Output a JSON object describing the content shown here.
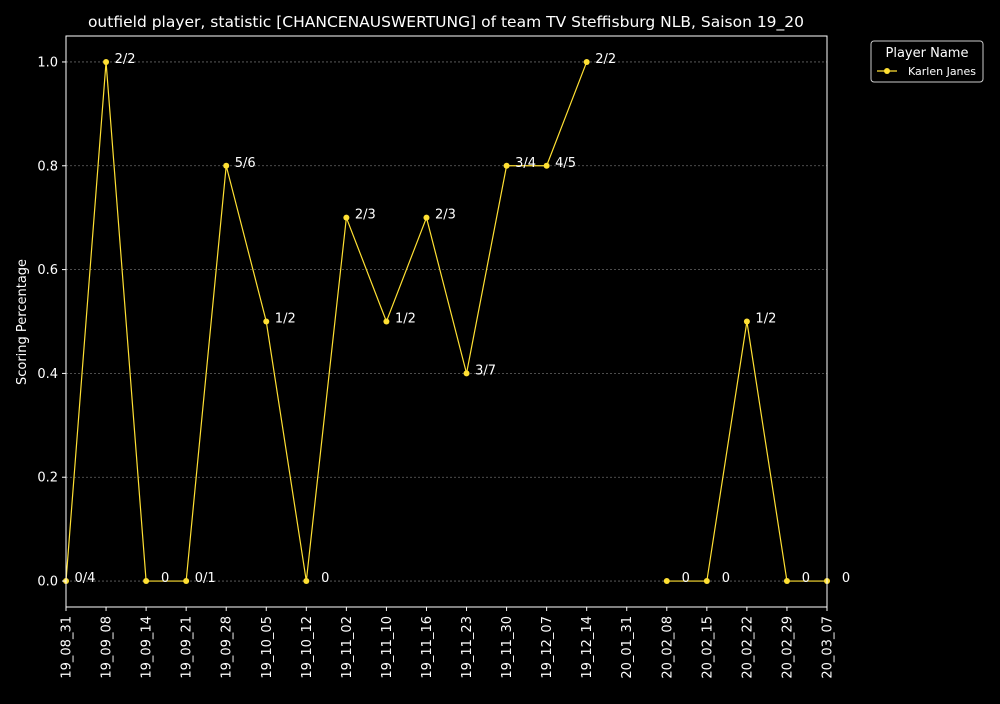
{
  "chart_data": {
    "type": "line",
    "title": "outfield player, statistic [CHANCENAUSWERTUNG] of team TV Steffisburg NLB, Saison 19_20",
    "xlabel": "",
    "ylabel": "Scoring Percentage",
    "ylim": [
      -0.05,
      1.05
    ],
    "yticks": [
      0.0,
      0.2,
      0.4,
      0.6,
      0.8,
      1.0
    ],
    "ytick_labels": [
      "0.0",
      "0.2",
      "0.4",
      "0.6",
      "0.8",
      "1.0"
    ],
    "grid": true,
    "legend": {
      "title": "Player Name",
      "placement": "outside-top-right"
    },
    "categories": [
      "19_08_31",
      "19_09_08",
      "19_09_14",
      "19_09_21",
      "19_09_28",
      "19_10_05",
      "19_10_12",
      "19_11_02",
      "19_11_10",
      "19_11_16",
      "19_11_23",
      "19_11_30",
      "19_12_07",
      "19_12_14",
      "20_01_31",
      "20_02_08",
      "20_02_15",
      "20_02_22",
      "20_02_29",
      "20_03_07"
    ],
    "series": [
      {
        "name": "Karlen Janes",
        "color": "#ffe033",
        "values": [
          0.0,
          1.0,
          0.0,
          0.0,
          0.8,
          0.5,
          0.0,
          0.7,
          0.5,
          0.7,
          0.4,
          0.8,
          0.8,
          1.0,
          null,
          0.0,
          0.0,
          0.5,
          0.0,
          0.0
        ],
        "labels": [
          "0/4",
          "2/2",
          "0",
          "0/1",
          "5/6",
          "1/2",
          "0",
          "2/3",
          "1/2",
          "2/3",
          "3/7",
          "3/4",
          "4/5",
          "2/2",
          "",
          "0",
          "0",
          "1/2",
          "0",
          "0"
        ]
      }
    ]
  }
}
